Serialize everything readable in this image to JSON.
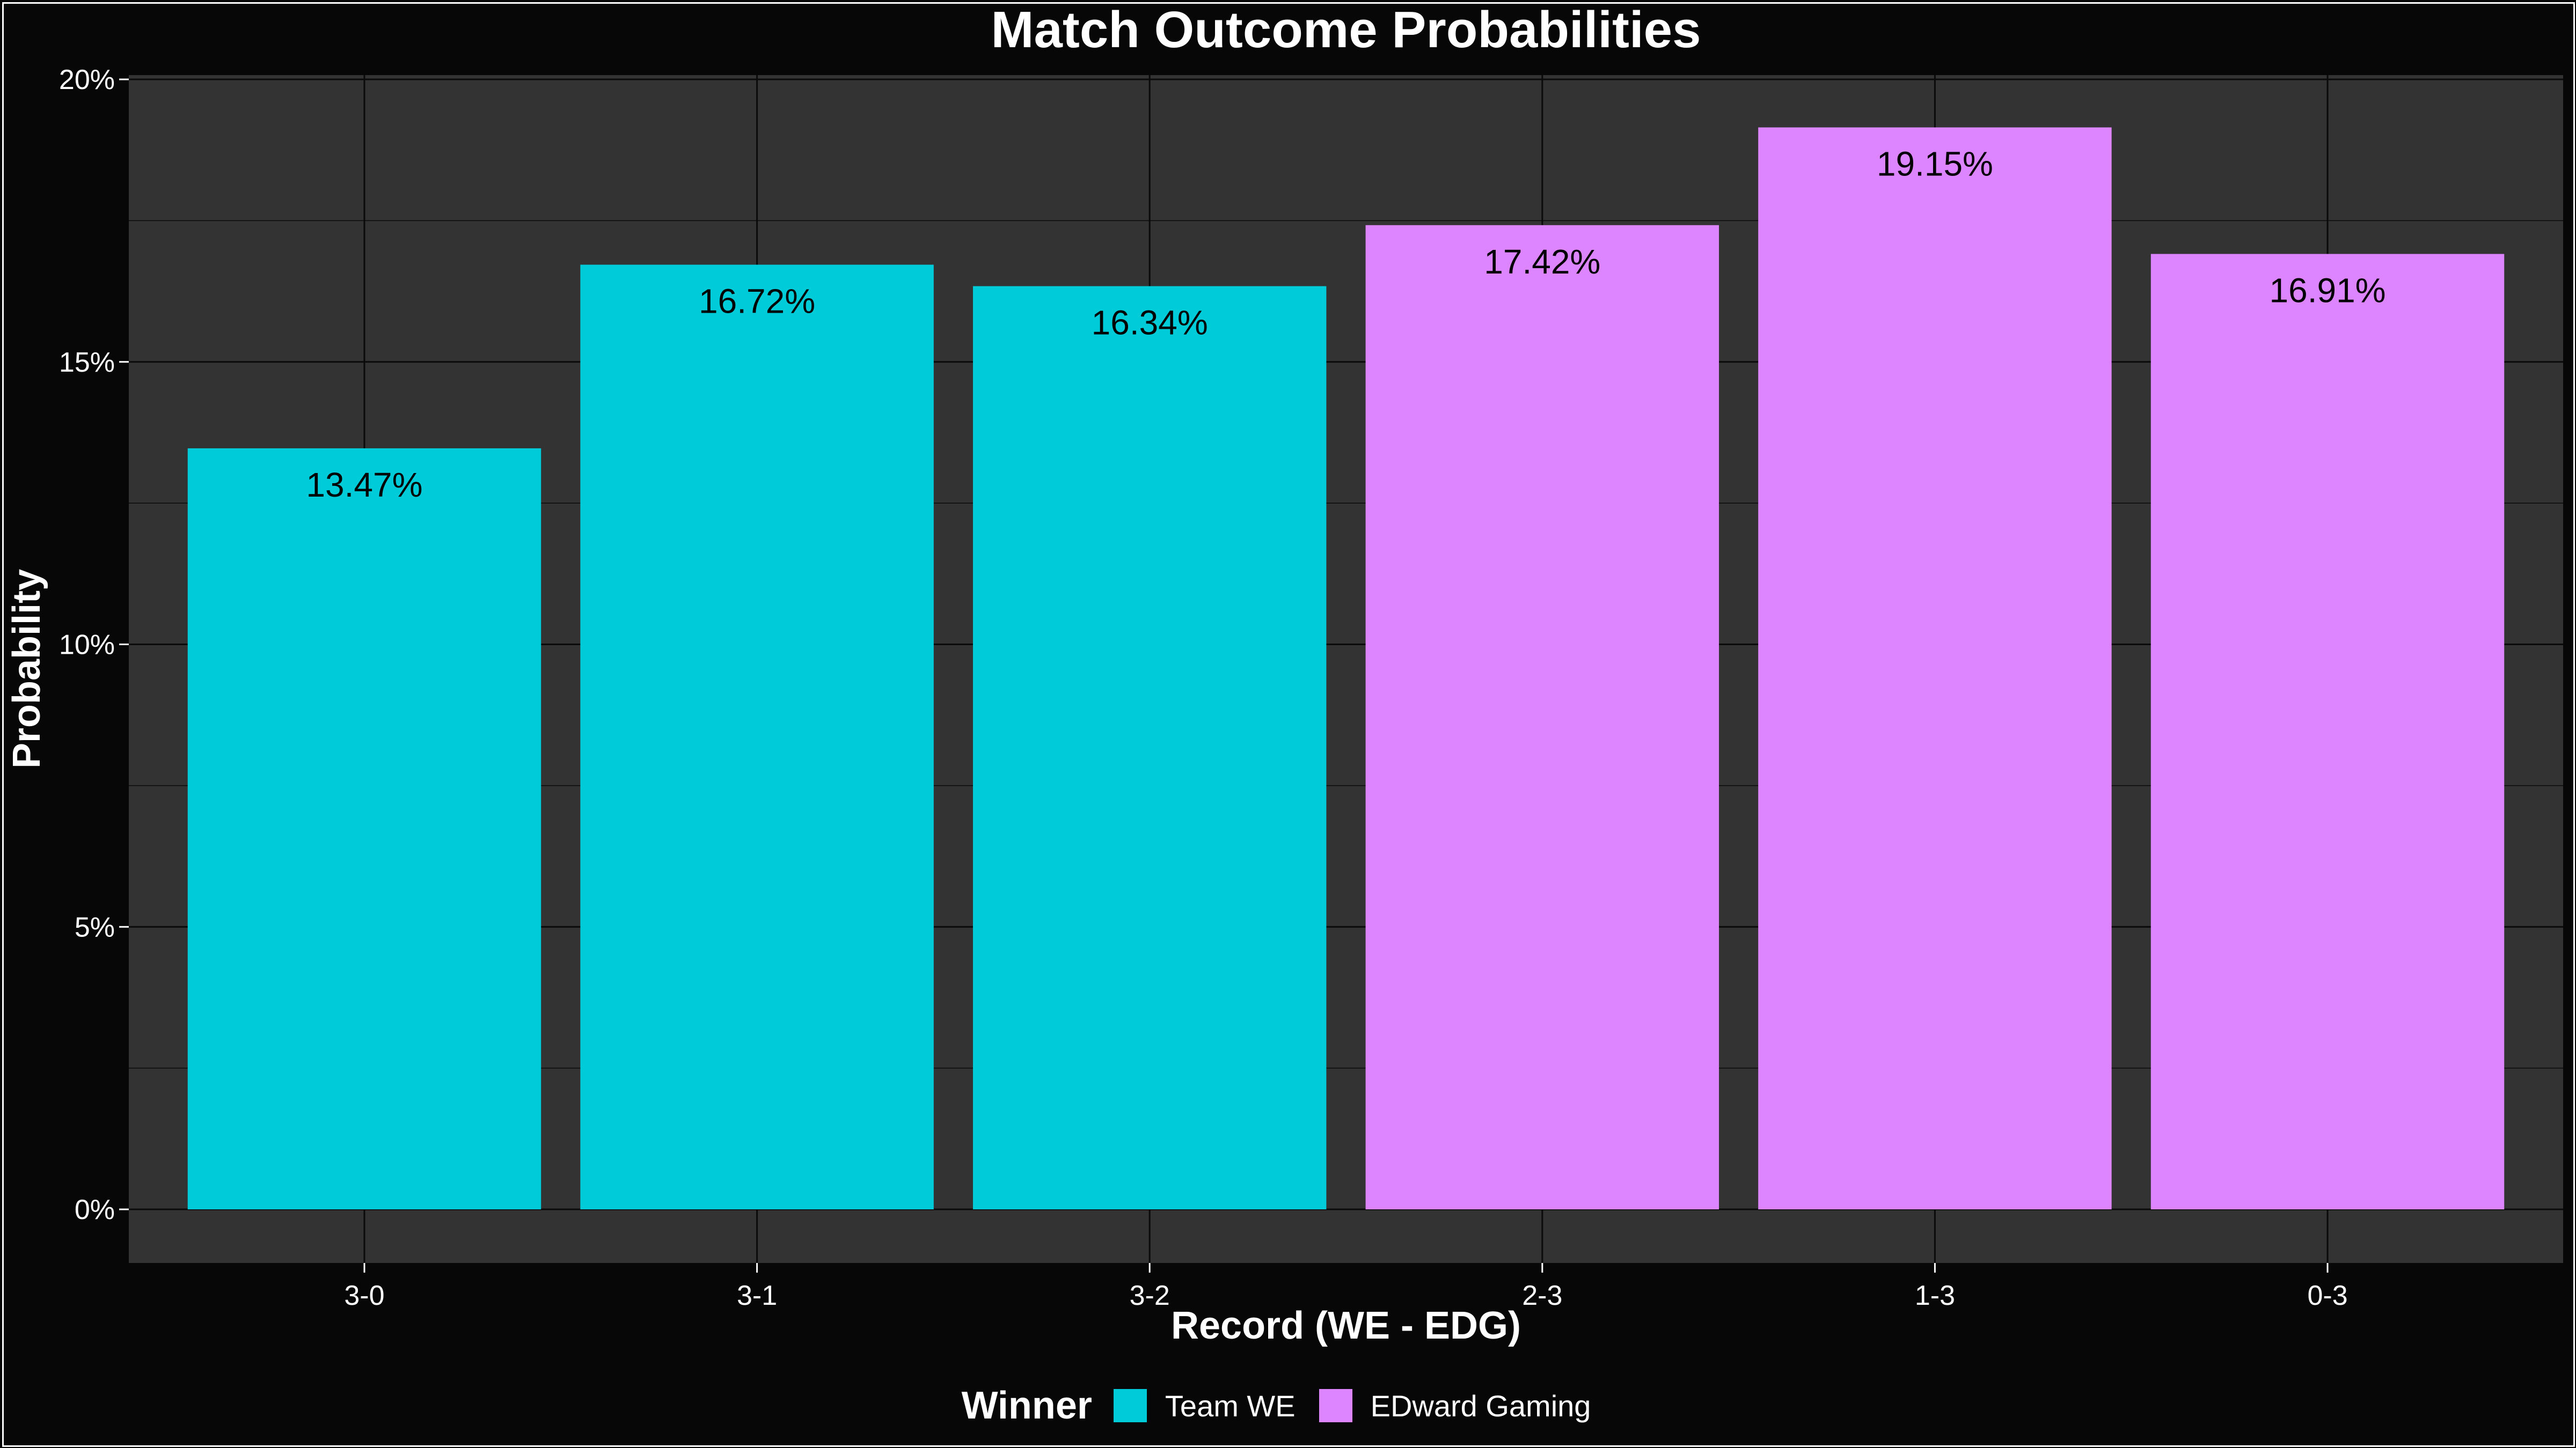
{
  "chart_data": {
    "type": "bar",
    "title": "Match Outcome Probabilities",
    "xlabel": "Record (WE - EDG)",
    "ylabel": "Probability",
    "categories": [
      "3-0",
      "3-1",
      "3-2",
      "2-3",
      "1-3",
      "0-3"
    ],
    "values": [
      13.47,
      16.72,
      16.34,
      17.42,
      19.15,
      16.91
    ],
    "value_labels": [
      "13.47%",
      "16.72%",
      "16.34%",
      "17.42%",
      "19.15%",
      "16.91%"
    ],
    "winner": [
      "Team WE",
      "Team WE",
      "Team WE",
      "EDward Gaming",
      "EDward Gaming",
      "EDward Gaming"
    ],
    "ylim": [
      0,
      20
    ],
    "yticks": [
      0,
      5,
      10,
      15,
      20
    ],
    "ytick_labels": [
      "0%",
      "5%",
      "10%",
      "15%",
      "20%"
    ],
    "grid": true,
    "legend": {
      "title": "Winner",
      "position": "bottom",
      "entries": [
        {
          "label": "Team WE",
          "color": "#00CCD9"
        },
        {
          "label": "EDward Gaming",
          "color": "#DD85FF"
        }
      ]
    },
    "colors": {
      "Team WE": "#00CCD9",
      "EDward Gaming": "#DD85FF",
      "panel": "#333333",
      "background": "#070707",
      "grid": "#0a0a0a",
      "text": "#ffffff",
      "bar_label": "#000000"
    }
  }
}
